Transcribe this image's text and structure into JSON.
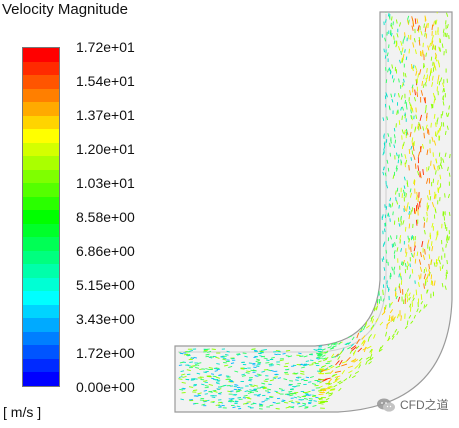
{
  "legend": {
    "title": "Velocity Magnitude",
    "units": "[ m/s ]",
    "tick_labels": [
      "1.72e+01",
      "1.54e+01",
      "1.37e+01",
      "1.20e+01",
      "1.03e+01",
      "8.58e+00",
      "6.86e+00",
      "5.15e+00",
      "3.43e+00",
      "1.72e+00",
      "0.00e+00"
    ],
    "swatch_colors_top_to_bottom": [
      "#ff0000",
      "#ff2a00",
      "#ff5500",
      "#ff7f00",
      "#ffaa00",
      "#ffd400",
      "#ffff00",
      "#d4ff00",
      "#aaff00",
      "#7fff00",
      "#55ff00",
      "#2aff00",
      "#00ff00",
      "#00ff2a",
      "#00ff55",
      "#00ff7f",
      "#00ffaa",
      "#00ffd4",
      "#00ffff",
      "#00d4ff",
      "#00aaff",
      "#007fff",
      "#0055ff",
      "#002aff",
      "#0000ff"
    ]
  },
  "watermark": {
    "text": "CFD之道"
  },
  "palette": {
    "vectors": [
      "#0018ff",
      "#0066ff",
      "#00b4ff",
      "#00e0c8",
      "#2aff60",
      "#8cff00",
      "#d8ff00",
      "#ffd000",
      "#ff7a00",
      "#ff2a00"
    ],
    "pipe_fill": "#f2f2f2",
    "pipe_edge": "#9a9a9a"
  }
}
